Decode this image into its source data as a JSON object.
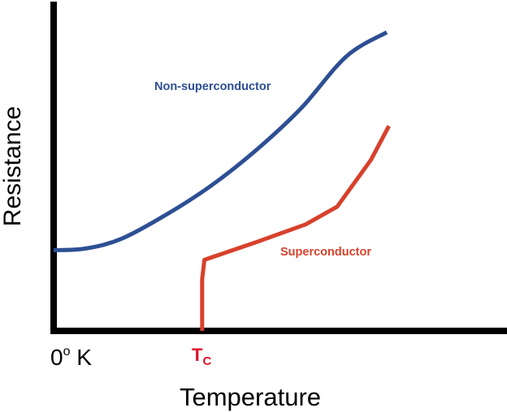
{
  "chart_data": {
    "type": "line",
    "title": "",
    "xlabel": "Temperature",
    "ylabel": "Resistance",
    "grid": false,
    "xlim": [
      0,
      10
    ],
    "ylim": [
      0,
      10
    ],
    "tick_labels": {
      "origin": {
        "main": "0",
        "sup": "o",
        "after": " K"
      },
      "tc": {
        "main": "T",
        "sub": "C"
      }
    },
    "critical_temperature": 3.3,
    "series": [
      {
        "name": "Non-superconductor",
        "color": "#2d4f93",
        "x": [
          0.0,
          0.7,
          1.5,
          2.5,
          3.5,
          4.5,
          5.5,
          6.5,
          7.4
        ],
        "y": [
          2.5,
          2.55,
          2.85,
          3.6,
          4.5,
          5.6,
          6.9,
          8.5,
          9.25
        ]
      },
      {
        "name": "Superconductor",
        "color": "#d7412c",
        "x": [
          3.3,
          3.3,
          3.35,
          4.5,
          5.6,
          6.3,
          7.05,
          7.45
        ],
        "y": [
          0.0,
          1.6,
          2.2,
          2.75,
          3.3,
          3.85,
          5.3,
          6.35
        ]
      }
    ],
    "axis_color": "#000000"
  }
}
